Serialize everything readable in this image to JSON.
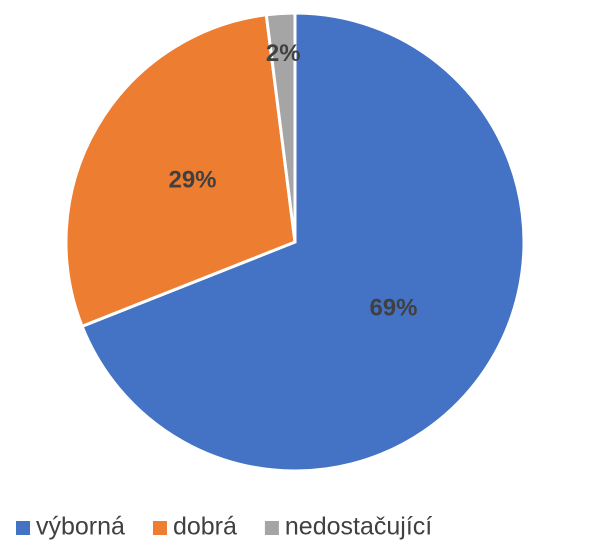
{
  "chart_data": {
    "type": "pie",
    "categories": [
      "výborná",
      "dobrá",
      "nedostačující"
    ],
    "values": [
      69,
      29,
      2
    ],
    "value_labels": [
      "69%",
      "29%",
      "2%"
    ],
    "colors": [
      "#4472c4",
      "#ed7d31",
      "#a5a5a5"
    ],
    "legend": "bottom"
  }
}
